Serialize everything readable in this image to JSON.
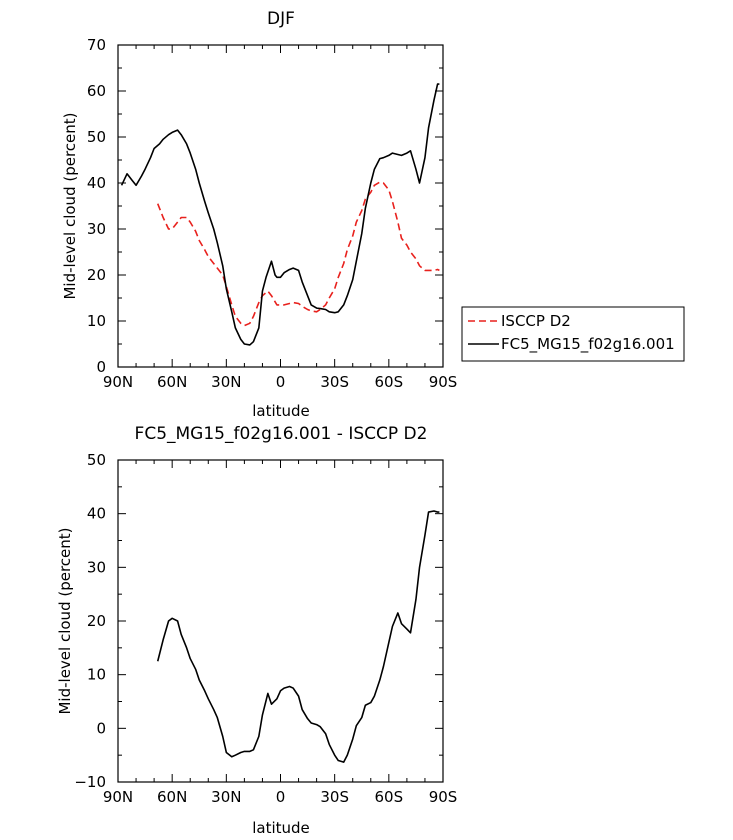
{
  "chart_data": [
    {
      "type": "line",
      "title": "DJF",
      "xlabel": "latitude",
      "ylabel": "Mid-level cloud (percent)",
      "xlim": [
        90,
        -90
      ],
      "ylim": [
        0,
        70
      ],
      "x_ticks": [
        90,
        60,
        30,
        0,
        -30,
        -60,
        -90
      ],
      "x_tick_labels": [
        "90N",
        "60N",
        "30N",
        "0",
        "30S",
        "60S",
        "90S"
      ],
      "y_ticks": [
        0,
        10,
        20,
        30,
        40,
        50,
        60,
        70
      ],
      "y_tick_labels": [
        "0",
        "10",
        "20",
        "30",
        "40",
        "50",
        "60",
        "70"
      ],
      "legend_position": "right",
      "series": [
        {
          "name": "ISCCP D2",
          "color": "#e8211d",
          "dash": "dashed",
          "x": [
            68,
            65,
            62,
            60,
            57,
            55,
            52,
            50,
            47,
            45,
            42,
            40,
            37,
            35,
            32,
            30,
            27,
            25,
            22,
            20,
            17,
            15,
            12,
            10,
            7,
            5,
            2,
            0,
            -2,
            -5,
            -7,
            -10,
            -12,
            -15,
            -17,
            -20,
            -22,
            -25,
            -27,
            -30,
            -32,
            -35,
            -37,
            -40,
            -42,
            -45,
            -47,
            -50,
            -52,
            -55,
            -57,
            -60,
            -62,
            -65,
            -67,
            -70,
            -72,
            -75,
            -77,
            -80,
            -82,
            -85,
            -87,
            -88
          ],
          "y": [
            35.5,
            32.5,
            30.0,
            30.0,
            31.5,
            32.5,
            32.5,
            31.5,
            29.5,
            27.5,
            25.5,
            24.0,
            22.5,
            21.5,
            20.0,
            17.5,
            13.5,
            11.0,
            9.5,
            9.0,
            9.5,
            11.0,
            14.0,
            15.5,
            16.5,
            15.5,
            13.5,
            13.5,
            13.5,
            13.8,
            14.0,
            13.8,
            13.2,
            12.5,
            12.2,
            12.0,
            12.5,
            13.5,
            15.0,
            17.0,
            19.5,
            22.5,
            25.5,
            28.5,
            31.5,
            34.0,
            36.5,
            38.0,
            39.5,
            40.2,
            40.0,
            38.5,
            36.0,
            31.5,
            28.0,
            26.5,
            25.0,
            23.5,
            22.0,
            21.0,
            21.0,
            21.0,
            21.2,
            21.0
          ]
        },
        {
          "name": "FC5_MG15_f02g16.001",
          "color": "#000000",
          "dash": "solid",
          "x": [
            88,
            85,
            82,
            80,
            77,
            75,
            72,
            70,
            67,
            65,
            62,
            60,
            57,
            55,
            52,
            50,
            47,
            45,
            42,
            40,
            37,
            35,
            32,
            30,
            27,
            25,
            22,
            20,
            17,
            15,
            12,
            10,
            8,
            5,
            3,
            2,
            0,
            -2,
            -5,
            -7,
            -10,
            -12,
            -15,
            -17,
            -20,
            -22,
            -25,
            -27,
            -30,
            -32,
            -35,
            -37,
            -40,
            -42,
            -45,
            -47,
            -50,
            -52,
            -55,
            -57,
            -60,
            -62,
            -65,
            -67,
            -70,
            -72,
            -75,
            -77,
            -80,
            -82,
            -85,
            -87,
            -88
          ],
          "y": [
            39.5,
            42.0,
            40.5,
            39.5,
            41.5,
            43.0,
            45.5,
            47.5,
            48.5,
            49.5,
            50.5,
            51.0,
            51.5,
            50.5,
            48.5,
            46.5,
            43.0,
            40.0,
            36.0,
            33.5,
            30.0,
            27.0,
            22.0,
            17.0,
            12.0,
            8.5,
            6.0,
            5.0,
            4.8,
            5.5,
            8.5,
            16.5,
            19.5,
            23.0,
            20.0,
            19.5,
            19.5,
            20.5,
            21.2,
            21.5,
            21.0,
            18.5,
            15.5,
            13.5,
            12.8,
            12.7,
            12.5,
            12.0,
            11.8,
            12.0,
            13.5,
            15.5,
            19.0,
            23.0,
            29.0,
            34.5,
            40.0,
            43.0,
            45.3,
            45.5,
            46.0,
            46.5,
            46.2,
            46.0,
            46.5,
            47.0,
            43.0,
            40.0,
            45.5,
            52.0,
            58.0,
            61.5,
            61.5
          ]
        }
      ]
    },
    {
      "type": "line",
      "title": "FC5_MG15_f02g16.001 - ISCCP D2",
      "xlabel": "latitude",
      "ylabel": "Mid-level cloud (percent)",
      "xlim": [
        90,
        -90
      ],
      "ylim": [
        -10,
        50
      ],
      "x_ticks": [
        90,
        60,
        30,
        0,
        -30,
        -60,
        -90
      ],
      "x_tick_labels": [
        "90N",
        "60N",
        "30N",
        "0",
        "30S",
        "60S",
        "90S"
      ],
      "y_ticks": [
        -10,
        0,
        10,
        20,
        30,
        40,
        50
      ],
      "y_tick_labels": [
        "−10",
        "0",
        "10",
        "20",
        "30",
        "40",
        "50"
      ],
      "series": [
        {
          "name": "",
          "color": "#000000",
          "dash": "solid",
          "x": [
            68,
            65,
            62,
            60,
            57,
            55,
            52,
            50,
            47,
            45,
            42,
            40,
            37,
            35,
            32,
            30,
            27,
            25,
            22,
            20,
            17,
            15,
            12,
            10,
            7,
            5,
            2,
            0,
            -2,
            -5,
            -7,
            -10,
            -12,
            -15,
            -17,
            -20,
            -22,
            -25,
            -27,
            -30,
            -32,
            -35,
            -37,
            -40,
            -42,
            -45,
            -47,
            -50,
            -52,
            -55,
            -57,
            -60,
            -62,
            -65,
            -67,
            -70,
            -72,
            -75,
            -77,
            -80,
            -82,
            -85,
            -87,
            -88
          ],
          "y": [
            12.5,
            16.5,
            20.0,
            20.5,
            20.0,
            17.5,
            15.0,
            13.0,
            11.0,
            9.0,
            7.0,
            5.5,
            3.5,
            2.0,
            -1.5,
            -4.5,
            -5.3,
            -5.0,
            -4.5,
            -4.3,
            -4.3,
            -4.0,
            -1.5,
            2.5,
            6.5,
            4.5,
            5.5,
            7.0,
            7.5,
            7.8,
            7.5,
            6.0,
            3.5,
            1.8,
            1.0,
            0.7,
            0.3,
            -1.0,
            -3.0,
            -5.0,
            -6.0,
            -6.3,
            -5.0,
            -2.0,
            0.5,
            2.0,
            4.3,
            4.8,
            6.0,
            9.0,
            11.5,
            16.0,
            19.0,
            21.5,
            19.5,
            18.5,
            17.8,
            24.0,
            30.0,
            36.0,
            40.3,
            40.5,
            40.3,
            40.3
          ]
        }
      ]
    }
  ]
}
